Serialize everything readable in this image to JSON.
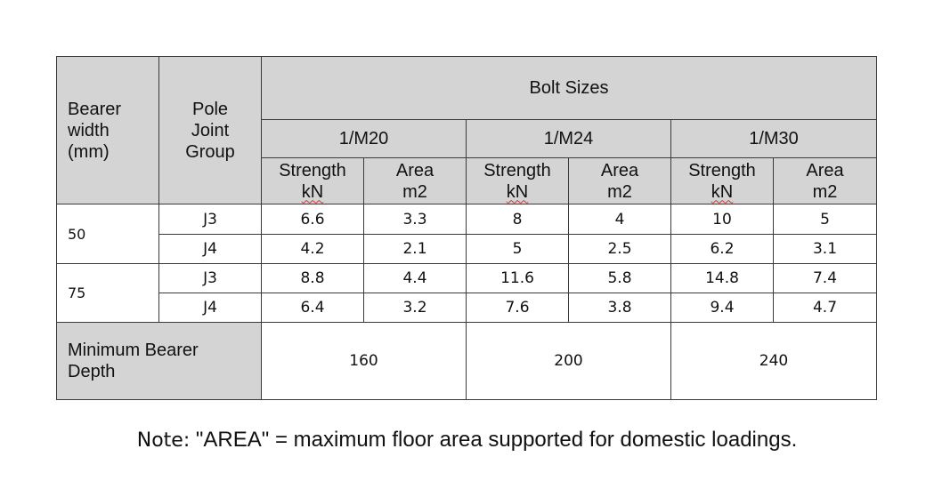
{
  "table": {
    "bearer_width_header": [
      "Bearer",
      "width",
      "(mm)"
    ],
    "pole_joint_header": [
      "Pole",
      "Joint",
      "Group"
    ],
    "bolt_sizes_header": "Bolt Sizes",
    "bolt_sizes": [
      "1/M20",
      "1/M24",
      "1/M30"
    ],
    "strength_label": "Strength",
    "strength_unit": "kN",
    "area_label": "Area",
    "area_unit": "m2",
    "groups": [
      {
        "width": "50",
        "rows": [
          {
            "joint": "J3",
            "values": [
              "6.6",
              "3.3",
              "8",
              "4",
              "10",
              "5"
            ]
          },
          {
            "joint": "J4",
            "values": [
              "4.2",
              "2.1",
              "5",
              "2.5",
              "6.2",
              "3.1"
            ]
          }
        ]
      },
      {
        "width": "75",
        "rows": [
          {
            "joint": "J3",
            "values": [
              "8.8",
              "4.4",
              "11.6",
              "5.8",
              "14.8",
              "7.4"
            ]
          },
          {
            "joint": "J4",
            "values": [
              "6.4",
              "3.2",
              "7.6",
              "3.8",
              "9.4",
              "4.7"
            ]
          }
        ]
      }
    ],
    "min_depth_label": [
      "Minimum Bearer",
      "Depth"
    ],
    "min_depth_values": [
      "160",
      "200",
      "240"
    ]
  },
  "note": {
    "prefix": "Note:",
    "text": " \"AREA\" = maximum floor area supported for domestic loadings."
  }
}
